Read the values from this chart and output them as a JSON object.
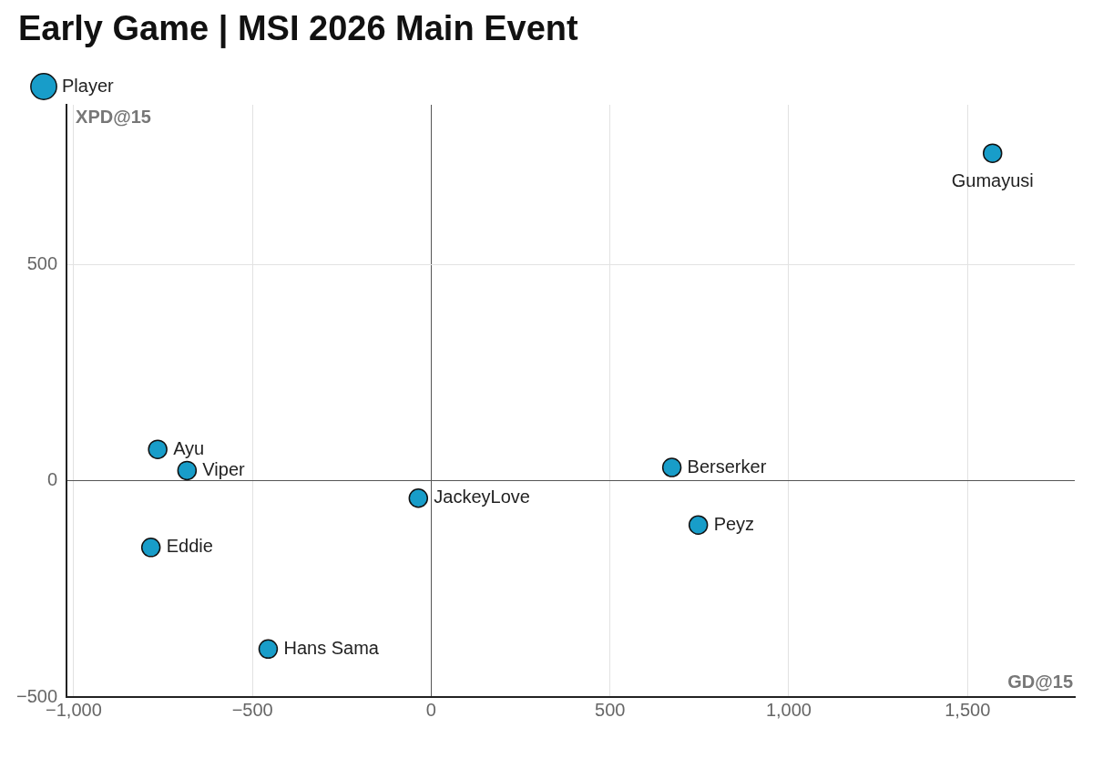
{
  "chart_data": {
    "type": "scatter",
    "title": "Early Game | MSI 2026 Main Event",
    "xlabel": "GD@15",
    "ylabel": "XPD@15",
    "series": [
      {
        "name": "Player",
        "color": "#189dc9",
        "x": [
          1570,
          -765,
          -683,
          -784,
          -456,
          -36,
          673,
          747
        ],
        "values": [
          758,
          73,
          24,
          -154,
          -389,
          -40,
          31,
          -102
        ]
      }
    ],
    "annotations": [
      {
        "text": "Gumayusi",
        "x": 1570,
        "y": 758
      },
      {
        "text": "Ayu",
        "x": -765,
        "y": 73
      },
      {
        "text": "Viper",
        "x": -683,
        "y": 24
      },
      {
        "text": "Eddie",
        "x": -784,
        "y": -154
      },
      {
        "text": "Hans Sama",
        "x": -456,
        "y": -389
      },
      {
        "text": "JackeyLove",
        "x": -36,
        "y": -40
      },
      {
        "text": "Berserker",
        "x": 673,
        "y": 31
      },
      {
        "text": "Peyz",
        "x": 747,
        "y": -102
      }
    ],
    "xlim": [
      -1020,
      1800
    ],
    "xticks": [
      {
        "value": -1000,
        "label": "−1,000"
      },
      {
        "value": -500,
        "label": "−500"
      },
      0,
      500,
      {
        "value": 1000,
        "label": "1,000"
      },
      {
        "value": 1500,
        "label": "1,500"
      }
    ],
    "ylim": [
      -500,
      870
    ],
    "yticks": [
      {
        "value": -500,
        "label": "−500"
      },
      0,
      500
    ],
    "grid": true,
    "legend": "top left",
    "marker": "circle"
  }
}
